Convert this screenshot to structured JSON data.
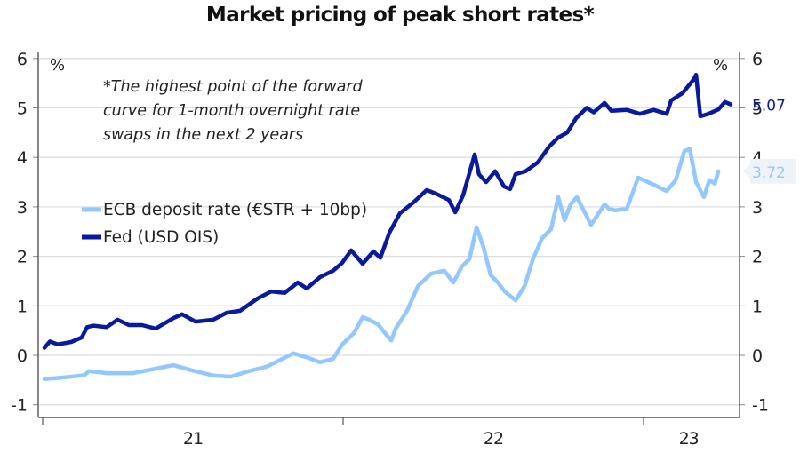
{
  "chart_data": {
    "type": "line",
    "title": "Market pricing of peak short rates*",
    "note_lines": [
      "*The highest point of the forward",
      "curve for 1-month overnight rate",
      "swaps in the next 2 years"
    ],
    "unit_left": "%",
    "unit_right": "%",
    "xlabel": "",
    "ylabel": "%",
    "ylim": [
      -1,
      6
    ],
    "yticks": [
      -1,
      0,
      1,
      2,
      3,
      4,
      5,
      6
    ],
    "ytick_labels": [
      "-1",
      "0",
      "1",
      "2",
      "3",
      "4",
      "5",
      "6"
    ],
    "xlim": [
      2021.0,
      2023.29
    ],
    "x_year_boundaries": [
      2021,
      2022,
      2023
    ],
    "xtick_labels": [
      {
        "label": "21",
        "center": 2021.5
      },
      {
        "label": "22",
        "center": 2022.5
      },
      {
        "label": "23",
        "center": 2023.15
      }
    ],
    "grid": true,
    "legend_position": "left-middle",
    "series": [
      {
        "name": "ECB deposit rate (€STR + 10bp)",
        "color": "#92c8ff",
        "end_label": "3.72",
        "end_label_bg": "#eef3f8",
        "x": [
          2021.006,
          2021.065,
          2021.139,
          2021.154,
          2021.213,
          2021.302,
          2021.376,
          2021.435,
          2021.494,
          2021.568,
          2021.627,
          2021.686,
          2021.746,
          2021.805,
          2021.834,
          2021.879,
          2021.923,
          2021.967,
          2021.997,
          2022.036,
          2022.065,
          2022.086,
          2022.115,
          2022.16,
          2022.175,
          2022.213,
          2022.249,
          2022.293,
          2022.337,
          2022.367,
          2022.396,
          2022.42,
          2022.444,
          2022.467,
          2022.491,
          2022.515,
          2022.538,
          2022.574,
          2022.604,
          2022.633,
          2022.663,
          2022.692,
          2022.716,
          2022.737,
          2022.757,
          2022.778,
          2022.825,
          2022.87,
          2022.885,
          2022.905,
          2022.944,
          2022.982,
          2023.033,
          2023.077,
          2023.107,
          2023.118,
          2023.136,
          2023.154,
          2023.175,
          2023.201,
          2023.219,
          2023.237,
          2023.249
        ],
        "values": [
          -0.48,
          -0.45,
          -0.4,
          -0.32,
          -0.36,
          -0.36,
          -0.27,
          -0.2,
          -0.3,
          -0.41,
          -0.43,
          -0.32,
          -0.23,
          -0.05,
          0.04,
          -0.04,
          -0.14,
          -0.07,
          0.22,
          0.45,
          0.77,
          0.72,
          0.63,
          0.3,
          0.54,
          0.9,
          1.4,
          1.65,
          1.71,
          1.47,
          1.8,
          1.94,
          2.59,
          2.19,
          1.62,
          1.47,
          1.29,
          1.11,
          1.4,
          1.97,
          2.37,
          2.55,
          3.2,
          2.73,
          3.05,
          3.2,
          2.64,
          3.05,
          2.96,
          2.93,
          2.96,
          3.59,
          3.45,
          3.32,
          3.54,
          3.77,
          4.13,
          4.17,
          3.5,
          3.2,
          3.54,
          3.47,
          3.72
        ]
      },
      {
        "name": "Fed (USD OIS)",
        "color": "#0a1a9c",
        "end_label": "5.07",
        "x": [
          2021.006,
          2021.024,
          2021.05,
          2021.095,
          2021.13,
          2021.148,
          2021.169,
          2021.213,
          2021.249,
          2021.287,
          2021.331,
          2021.376,
          2021.435,
          2021.464,
          2021.509,
          2021.568,
          2021.612,
          2021.657,
          2021.716,
          2021.761,
          2021.805,
          2021.849,
          2021.879,
          2021.923,
          2021.967,
          2021.997,
          2022.027,
          2022.065,
          2022.101,
          2022.124,
          2022.154,
          2022.189,
          2022.234,
          2022.278,
          2022.308,
          2022.352,
          2022.373,
          2022.399,
          2022.438,
          2022.452,
          2022.476,
          2022.506,
          2022.536,
          2022.556,
          2022.574,
          2022.607,
          2022.648,
          2022.686,
          2022.716,
          2022.746,
          2022.775,
          2022.811,
          2022.834,
          2022.87,
          2022.893,
          2022.944,
          2022.988,
          2023.033,
          2023.077,
          2023.092,
          2023.13,
          2023.166,
          2023.175,
          2023.189,
          2023.216,
          2023.249,
          2023.271,
          2023.29
        ],
        "values": [
          0.15,
          0.28,
          0.22,
          0.27,
          0.36,
          0.57,
          0.6,
          0.57,
          0.72,
          0.61,
          0.61,
          0.54,
          0.75,
          0.83,
          0.68,
          0.72,
          0.86,
          0.9,
          1.15,
          1.29,
          1.26,
          1.47,
          1.35,
          1.58,
          1.71,
          1.87,
          2.12,
          1.85,
          2.1,
          1.97,
          2.48,
          2.87,
          3.09,
          3.34,
          3.27,
          3.14,
          2.89,
          3.23,
          4.06,
          3.66,
          3.5,
          3.72,
          3.41,
          3.36,
          3.66,
          3.72,
          3.9,
          4.22,
          4.4,
          4.5,
          4.79,
          5.0,
          4.91,
          5.1,
          4.94,
          4.96,
          4.88,
          4.96,
          4.88,
          5.15,
          5.3,
          5.57,
          5.67,
          4.83,
          4.88,
          4.97,
          5.12,
          5.07
        ]
      }
    ]
  }
}
